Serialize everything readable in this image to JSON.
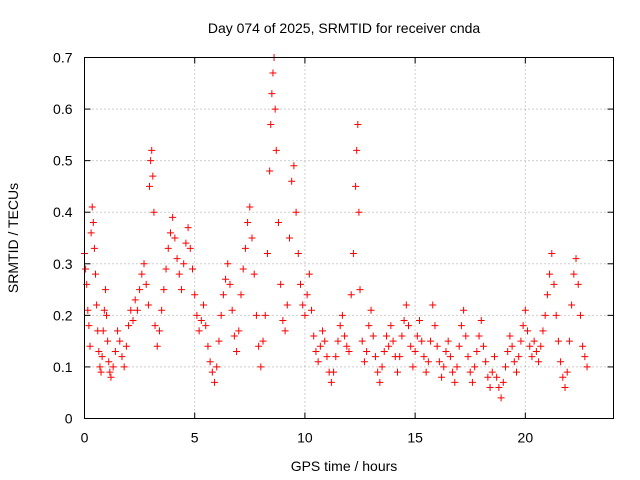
{
  "chart_data": {
    "type": "scatter",
    "title": "Day 074 of 2025, SRMTID for receiver cnda",
    "xlabel": "GPS time / hours",
    "ylabel": "SRMTID / TECUs",
    "xlim": [
      0,
      24
    ],
    "ylim": [
      0,
      0.7
    ],
    "xticks": [
      0,
      5,
      10,
      15,
      20
    ],
    "yticks": [
      0,
      0.1,
      0.2,
      0.3,
      0.4,
      0.5,
      0.6,
      0.7
    ],
    "xtick_labels": [
      "0",
      "5",
      "10",
      "15",
      "20"
    ],
    "ytick_labels": [
      "0",
      "0.1",
      "0.2",
      "0.3",
      "0.4",
      "0.5",
      "0.6",
      "0.7"
    ],
    "grid": true,
    "marker": "+",
    "color": "#ff0000",
    "series": [
      {
        "name": "SRMTID",
        "points": [
          [
            0.0,
            0.32
          ],
          [
            0.05,
            0.29
          ],
          [
            0.1,
            0.26
          ],
          [
            0.15,
            0.21
          ],
          [
            0.2,
            0.18
          ],
          [
            0.25,
            0.14
          ],
          [
            0.3,
            0.36
          ],
          [
            0.35,
            0.41
          ],
          [
            0.4,
            0.38
          ],
          [
            0.45,
            0.33
          ],
          [
            0.5,
            0.28
          ],
          [
            0.55,
            0.22
          ],
          [
            0.6,
            0.17
          ],
          [
            0.65,
            0.13
          ],
          [
            0.7,
            0.1
          ],
          [
            0.75,
            0.09
          ],
          [
            0.8,
            0.12
          ],
          [
            0.85,
            0.17
          ],
          [
            0.9,
            0.21
          ],
          [
            0.95,
            0.25
          ],
          [
            1.0,
            0.2
          ],
          [
            1.05,
            0.15
          ],
          [
            1.1,
            0.11
          ],
          [
            1.15,
            0.09
          ],
          [
            1.2,
            0.08
          ],
          [
            1.3,
            0.1
          ],
          [
            1.4,
            0.13
          ],
          [
            1.5,
            0.17
          ],
          [
            1.6,
            0.15
          ],
          [
            1.7,
            0.12
          ],
          [
            1.8,
            0.1
          ],
          [
            1.9,
            0.14
          ],
          [
            2.0,
            0.18
          ],
          [
            2.1,
            0.21
          ],
          [
            2.2,
            0.19
          ],
          [
            2.3,
            0.23
          ],
          [
            2.4,
            0.21
          ],
          [
            2.5,
            0.25
          ],
          [
            2.6,
            0.28
          ],
          [
            2.7,
            0.3
          ],
          [
            2.8,
            0.26
          ],
          [
            2.9,
            0.22
          ],
          [
            2.95,
            0.45
          ],
          [
            3.0,
            0.5
          ],
          [
            3.05,
            0.52
          ],
          [
            3.1,
            0.47
          ],
          [
            3.15,
            0.4
          ],
          [
            3.2,
            0.18
          ],
          [
            3.3,
            0.14
          ],
          [
            3.4,
            0.17
          ],
          [
            3.5,
            0.21
          ],
          [
            3.6,
            0.25
          ],
          [
            3.7,
            0.29
          ],
          [
            3.8,
            0.33
          ],
          [
            3.9,
            0.36
          ],
          [
            4.0,
            0.39
          ],
          [
            4.1,
            0.35
          ],
          [
            4.2,
            0.31
          ],
          [
            4.3,
            0.28
          ],
          [
            4.4,
            0.25
          ],
          [
            4.5,
            0.3
          ],
          [
            4.6,
            0.34
          ],
          [
            4.7,
            0.37
          ],
          [
            4.8,
            0.33
          ],
          [
            4.9,
            0.29
          ],
          [
            5.0,
            0.24
          ],
          [
            5.1,
            0.2
          ],
          [
            5.2,
            0.17
          ],
          [
            5.3,
            0.19
          ],
          [
            5.4,
            0.22
          ],
          [
            5.5,
            0.18
          ],
          [
            5.6,
            0.14
          ],
          [
            5.7,
            0.11
          ],
          [
            5.8,
            0.09
          ],
          [
            5.9,
            0.07
          ],
          [
            6.0,
            0.1
          ],
          [
            6.1,
            0.15
          ],
          [
            6.2,
            0.2
          ],
          [
            6.3,
            0.24
          ],
          [
            6.4,
            0.27
          ],
          [
            6.5,
            0.3
          ],
          [
            6.6,
            0.26
          ],
          [
            6.7,
            0.21
          ],
          [
            6.8,
            0.16
          ],
          [
            6.9,
            0.13
          ],
          [
            7.0,
            0.17
          ],
          [
            7.1,
            0.24
          ],
          [
            7.2,
            0.29
          ],
          [
            7.3,
            0.33
          ],
          [
            7.4,
            0.38
          ],
          [
            7.5,
            0.41
          ],
          [
            7.6,
            0.35
          ],
          [
            7.7,
            0.28
          ],
          [
            7.8,
            0.2
          ],
          [
            7.9,
            0.14
          ],
          [
            8.0,
            0.1
          ],
          [
            8.1,
            0.15
          ],
          [
            8.2,
            0.2
          ],
          [
            8.3,
            0.32
          ],
          [
            8.4,
            0.48
          ],
          [
            8.45,
            0.57
          ],
          [
            8.5,
            0.63
          ],
          [
            8.55,
            0.67
          ],
          [
            8.6,
            0.7
          ],
          [
            8.65,
            0.6
          ],
          [
            8.7,
            0.52
          ],
          [
            8.8,
            0.38
          ],
          [
            8.9,
            0.26
          ],
          [
            9.0,
            0.19
          ],
          [
            9.1,
            0.17
          ],
          [
            9.2,
            0.22
          ],
          [
            9.3,
            0.35
          ],
          [
            9.4,
            0.46
          ],
          [
            9.5,
            0.49
          ],
          [
            9.6,
            0.4
          ],
          [
            9.7,
            0.32
          ],
          [
            9.8,
            0.26
          ],
          [
            9.9,
            0.22
          ],
          [
            10.0,
            0.2
          ],
          [
            10.1,
            0.24
          ],
          [
            10.2,
            0.28
          ],
          [
            10.3,
            0.21
          ],
          [
            10.4,
            0.16
          ],
          [
            10.5,
            0.13
          ],
          [
            10.6,
            0.11
          ],
          [
            10.7,
            0.14
          ],
          [
            10.8,
            0.17
          ],
          [
            10.9,
            0.15
          ],
          [
            11.0,
            0.12
          ],
          [
            11.1,
            0.09
          ],
          [
            11.2,
            0.07
          ],
          [
            11.3,
            0.09
          ],
          [
            11.4,
            0.12
          ],
          [
            11.5,
            0.15
          ],
          [
            11.6,
            0.18
          ],
          [
            11.7,
            0.2
          ],
          [
            11.8,
            0.16
          ],
          [
            11.9,
            0.14
          ],
          [
            12.0,
            0.13
          ],
          [
            12.1,
            0.24
          ],
          [
            12.2,
            0.32
          ],
          [
            12.3,
            0.45
          ],
          [
            12.35,
            0.52
          ],
          [
            12.4,
            0.57
          ],
          [
            12.45,
            0.4
          ],
          [
            12.5,
            0.25
          ],
          [
            12.6,
            0.15
          ],
          [
            12.7,
            0.11
          ],
          [
            12.8,
            0.13
          ],
          [
            12.9,
            0.18
          ],
          [
            13.0,
            0.21
          ],
          [
            13.1,
            0.16
          ],
          [
            13.2,
            0.12
          ],
          [
            13.3,
            0.09
          ],
          [
            13.4,
            0.07
          ],
          [
            13.5,
            0.1
          ],
          [
            13.6,
            0.13
          ],
          [
            13.7,
            0.16
          ],
          [
            13.8,
            0.14
          ],
          [
            13.9,
            0.18
          ],
          [
            14.0,
            0.15
          ],
          [
            14.1,
            0.12
          ],
          [
            14.2,
            0.09
          ],
          [
            14.3,
            0.12
          ],
          [
            14.4,
            0.16
          ],
          [
            14.5,
            0.19
          ],
          [
            14.6,
            0.22
          ],
          [
            14.7,
            0.18
          ],
          [
            14.8,
            0.14
          ],
          [
            14.9,
            0.1
          ],
          [
            15.0,
            0.13
          ],
          [
            15.1,
            0.16
          ],
          [
            15.2,
            0.19
          ],
          [
            15.3,
            0.15
          ],
          [
            15.4,
            0.12
          ],
          [
            15.5,
            0.09
          ],
          [
            15.6,
            0.11
          ],
          [
            15.7,
            0.15
          ],
          [
            15.8,
            0.22
          ],
          [
            15.9,
            0.18
          ],
          [
            16.0,
            0.14
          ],
          [
            16.1,
            0.11
          ],
          [
            16.2,
            0.08
          ],
          [
            16.3,
            0.1
          ],
          [
            16.4,
            0.13
          ],
          [
            16.5,
            0.15
          ],
          [
            16.6,
            0.12
          ],
          [
            16.7,
            0.09
          ],
          [
            16.8,
            0.07
          ],
          [
            16.9,
            0.1
          ],
          [
            17.0,
            0.14
          ],
          [
            17.1,
            0.18
          ],
          [
            17.2,
            0.21
          ],
          [
            17.3,
            0.16
          ],
          [
            17.4,
            0.12
          ],
          [
            17.5,
            0.09
          ],
          [
            17.6,
            0.07
          ],
          [
            17.7,
            0.1
          ],
          [
            17.8,
            0.13
          ],
          [
            17.9,
            0.16
          ],
          [
            18.0,
            0.19
          ],
          [
            18.1,
            0.14
          ],
          [
            18.2,
            0.11
          ],
          [
            18.3,
            0.08
          ],
          [
            18.4,
            0.06
          ],
          [
            18.5,
            0.09
          ],
          [
            18.6,
            0.12
          ],
          [
            18.7,
            0.08
          ],
          [
            18.8,
            0.06
          ],
          [
            18.9,
            0.04
          ],
          [
            19.0,
            0.07
          ],
          [
            19.1,
            0.1
          ],
          [
            19.2,
            0.13
          ],
          [
            19.3,
            0.16
          ],
          [
            19.4,
            0.14
          ],
          [
            19.5,
            0.11
          ],
          [
            19.6,
            0.09
          ],
          [
            19.7,
            0.12
          ],
          [
            19.8,
            0.15
          ],
          [
            19.9,
            0.18
          ],
          [
            20.0,
            0.21
          ],
          [
            20.1,
            0.17
          ],
          [
            20.2,
            0.14
          ],
          [
            20.3,
            0.12
          ],
          [
            20.4,
            0.15
          ],
          [
            20.5,
            0.13
          ],
          [
            20.6,
            0.11
          ],
          [
            20.7,
            0.14
          ],
          [
            20.8,
            0.17
          ],
          [
            20.9,
            0.2
          ],
          [
            21.0,
            0.24
          ],
          [
            21.1,
            0.28
          ],
          [
            21.2,
            0.32
          ],
          [
            21.3,
            0.26
          ],
          [
            21.4,
            0.2
          ],
          [
            21.5,
            0.15
          ],
          [
            21.6,
            0.11
          ],
          [
            21.7,
            0.08
          ],
          [
            21.8,
            0.06
          ],
          [
            21.9,
            0.09
          ],
          [
            22.0,
            0.15
          ],
          [
            22.1,
            0.22
          ],
          [
            22.2,
            0.28
          ],
          [
            22.3,
            0.31
          ],
          [
            22.4,
            0.26
          ],
          [
            22.5,
            0.2
          ],
          [
            22.6,
            0.14
          ],
          [
            22.7,
            0.12
          ],
          [
            22.8,
            0.1
          ]
        ]
      }
    ]
  }
}
